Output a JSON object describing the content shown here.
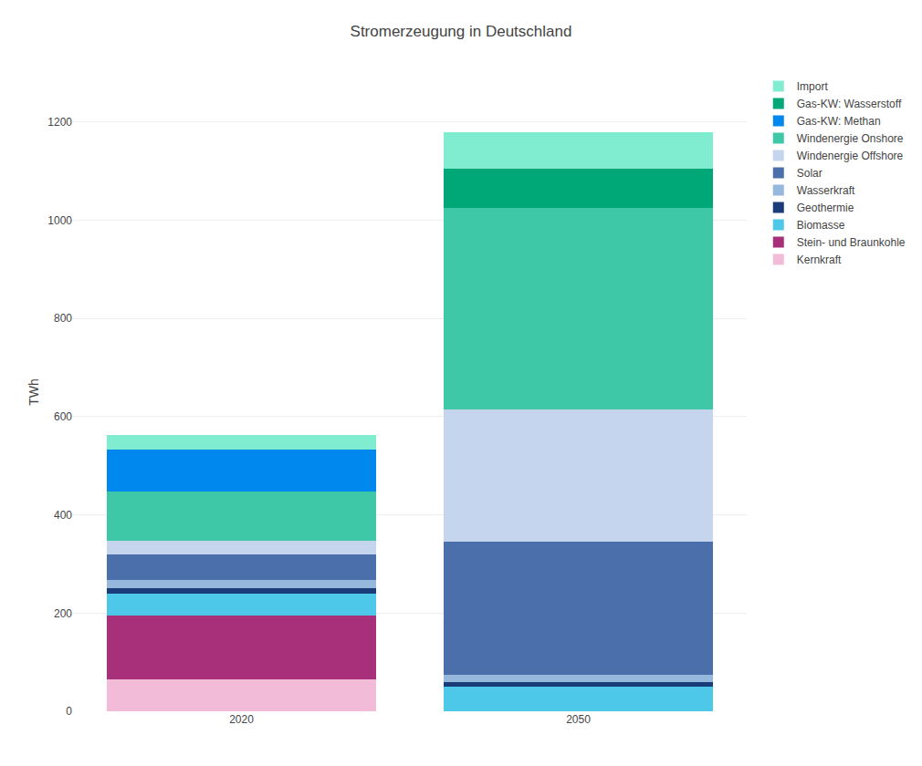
{
  "chart_data": {
    "type": "bar",
    "stacked": true,
    "title": "Stromerzeugung in Deutschland",
    "ylabel": "TWh",
    "categories": [
      "2020",
      "2050"
    ],
    "series": [
      {
        "name": "Kernkraft",
        "color": "#F2BBD8",
        "values": [
          65,
          0
        ]
      },
      {
        "name": "Stein- und Braunkohle",
        "color": "#A82F7A",
        "values": [
          130,
          0
        ]
      },
      {
        "name": "Biomasse",
        "color": "#4DC8E8",
        "values": [
          45,
          50
        ]
      },
      {
        "name": "Geothermie",
        "color": "#1A3C78",
        "values": [
          10,
          10
        ]
      },
      {
        "name": "Wasserkraft",
        "color": "#96B8DC",
        "values": [
          18,
          15
        ]
      },
      {
        "name": "Solar",
        "color": "#4A6FAA",
        "values": [
          52,
          270
        ]
      },
      {
        "name": "Windenergie Offshore",
        "color": "#C5D5EE",
        "values": [
          28,
          270
        ]
      },
      {
        "name": "Windenergie Onshore",
        "color": "#3EC8A8",
        "values": [
          100,
          410
        ]
      },
      {
        "name": "Gas-KW: Methan",
        "color": "#0088EE",
        "values": [
          85,
          0
        ]
      },
      {
        "name": "Gas-KW: Wasserstoff",
        "color": "#00A878",
        "values": [
          0,
          80
        ]
      },
      {
        "name": "Import",
        "color": "#80EDD0",
        "values": [
          30,
          75
        ]
      }
    ],
    "ylim": [
      0,
      1300
    ],
    "yticks": [
      0,
      200,
      400,
      600,
      800,
      1000,
      1200
    ],
    "grid": true,
    "legend": "right"
  }
}
